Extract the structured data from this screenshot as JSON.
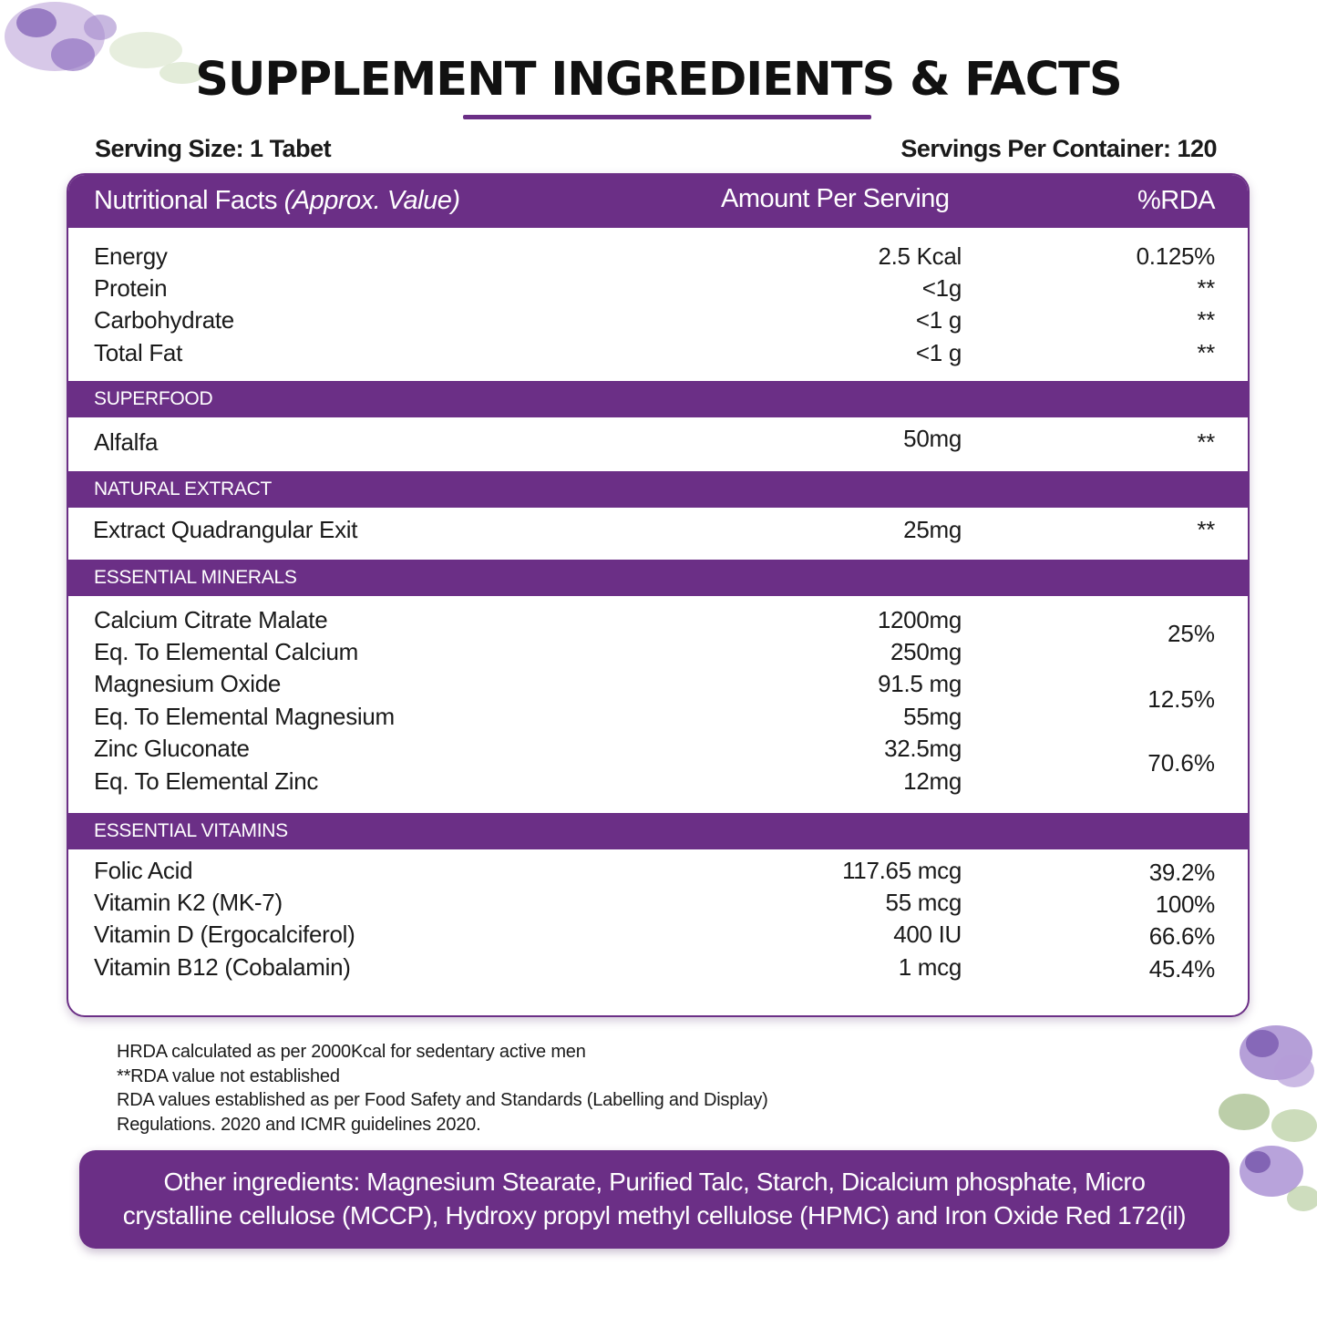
{
  "title": "SUPPLEMENT INGREDIENTS & FACTS",
  "serving_size": "Serving Size: 1 Tabet",
  "servings_per_container": "Servings Per Container: 120",
  "header": {
    "name": "Nutritional Facts",
    "name_italic": "(Approx. Value)",
    "amount": "Amount Per Serving",
    "rda": "%RDA"
  },
  "nutrition": [
    {
      "name": "Energy",
      "amount": "2.5 Kcal",
      "rda": "0.125%"
    },
    {
      "name": "Protein",
      "amount": "<1g",
      "rda": "**"
    },
    {
      "name": "Carbohydrate",
      "amount": "<1 g",
      "rda": "**"
    },
    {
      "name": "Total Fat",
      "amount": "<1 g",
      "rda": "**"
    }
  ],
  "superfood": {
    "heading": "SUPERFOOD",
    "rows": [
      {
        "name": "Alfalfa",
        "amount": "50mg",
        "rda": "**"
      }
    ]
  },
  "natural_extract": {
    "heading": "NATURAL EXTRACT",
    "rows": [
      {
        "name": "Extract Quadrangular Exit",
        "amount": "25mg",
        "rda": "**"
      }
    ]
  },
  "minerals": {
    "heading": "ESSENTIAL MINERALS",
    "rows": [
      {
        "name": "Calcium Citrate Malate",
        "amount": "1200mg"
      },
      {
        "name": "Eq. To Elemental Calcium",
        "amount": "250mg"
      },
      {
        "name": "Magnesium Oxide",
        "amount": "91.5 mg"
      },
      {
        "name": "Eq. To Elemental Magnesium",
        "amount": "55mg"
      },
      {
        "name": "Zinc Gluconate",
        "amount": "32.5mg"
      },
      {
        "name": "Eq. To Elemental Zinc",
        "amount": "12mg"
      }
    ],
    "rda": [
      "25%",
      "12.5%",
      "70.6%"
    ]
  },
  "vitamins": {
    "heading": "ESSENTIAL VITAMINS",
    "rows": [
      {
        "name": "Folic Acid",
        "amount": "117.65 mcg",
        "rda": "39.2%"
      },
      {
        "name": "Vitamin K2 (MK-7)",
        "amount": "55 mcg",
        "rda": "100%"
      },
      {
        "name": "Vitamin D (Ergocalciferol)",
        "amount": "400 IU",
        "rda": "66.6%"
      },
      {
        "name": "Vitamin B12 (Cobalamin)",
        "amount": "1 mcg",
        "rda": "45.4%"
      }
    ]
  },
  "footnotes": [
    "HRDA calculated as per 2000Kcal for sedentary active men",
    "**RDA value not established",
    "RDA values established as per Food Safety and Standards (Labelling and Display)",
    "Regulations. 2020 and ICMR guidelines 2020."
  ],
  "other_ingredients": [
    "Other ingredients: Magnesium Stearate, Purified Talc, Starch, Dicalcium phosphate, Micro",
    "crystalline cellulose (MCCP), Hydroxy propyl methyl cellulose (HPMC) and Iron Oxide Red 172(il)"
  ],
  "colors": {
    "accent": "#6b2f86",
    "text": "#111111",
    "background": "#ffffff"
  }
}
